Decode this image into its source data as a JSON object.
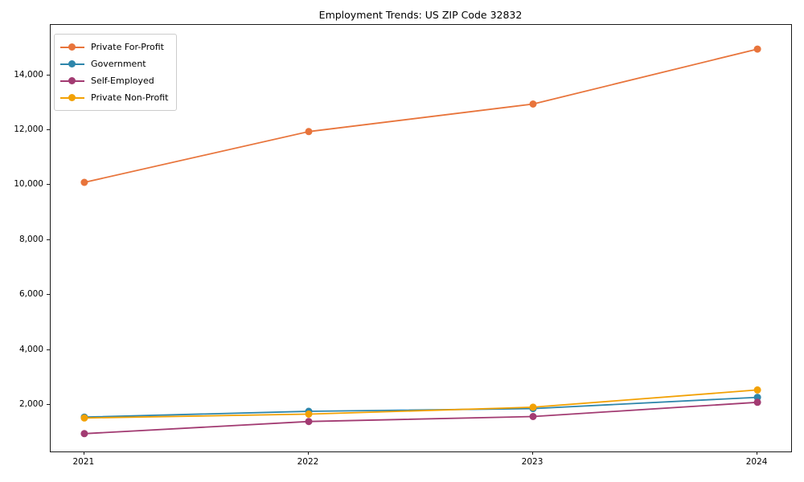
{
  "chart_data": {
    "type": "line",
    "title": "Employment Trends: US ZIP Code 32832",
    "xlabel": "",
    "ylabel": "",
    "x": [
      2021,
      2022,
      2023,
      2024
    ],
    "xtick_labels": [
      "2021",
      "2022",
      "2023",
      "2024"
    ],
    "series": [
      {
        "name": "Private For-Profit",
        "color": "#e8743b",
        "values": [
          10100,
          11950,
          12950,
          14950
        ]
      },
      {
        "name": "Government",
        "color": "#2e86ab",
        "values": [
          1560,
          1770,
          1870,
          2280
        ]
      },
      {
        "name": "Self-Employed",
        "color": "#a23b72",
        "values": [
          960,
          1400,
          1580,
          2100
        ]
      },
      {
        "name": "Private Non-Profit",
        "color": "#f2a104",
        "values": [
          1530,
          1670,
          1920,
          2550
        ]
      }
    ],
    "yticks": [
      2000,
      4000,
      6000,
      8000,
      10000,
      12000,
      14000
    ],
    "ylim": [
      310,
      15830
    ],
    "xlim": [
      2020.85,
      2024.15
    ],
    "grid": false,
    "legend_position": "upper-left",
    "marker": "circle",
    "line_width": 1.8,
    "marker_radius": 4.5
  }
}
